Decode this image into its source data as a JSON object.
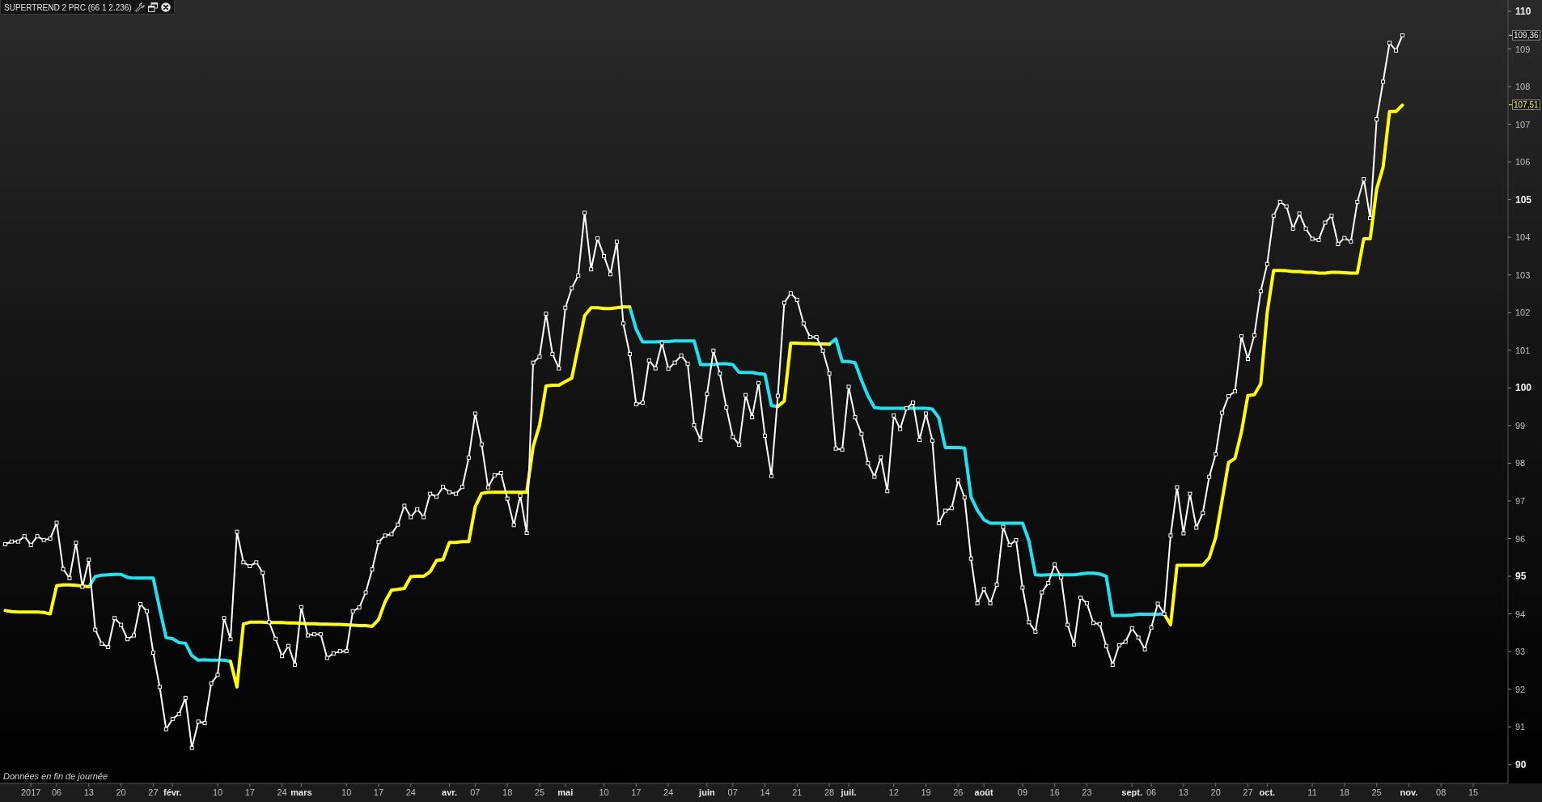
{
  "chart_data": {
    "type": "line",
    "title": "SUPERTREND 2 PRC (66 1 2.236)",
    "categories": [
      null,
      null,
      null,
      null,
      "2017",
      null,
      null,
      null,
      "06",
      null,
      null,
      null,
      null,
      "13",
      null,
      null,
      null,
      null,
      "20",
      null,
      null,
      null,
      null,
      "27",
      null,
      null,
      "févr.",
      null,
      null,
      null,
      null,
      null,
      null,
      "10",
      null,
      null,
      null,
      null,
      "17",
      null,
      null,
      null,
      null,
      "24",
      null,
      null,
      "mars",
      null,
      null,
      null,
      null,
      null,
      null,
      "10",
      null,
      null,
      null,
      null,
      "17",
      null,
      null,
      null,
      null,
      "24",
      null,
      null,
      null,
      null,
      null,
      "avr.",
      null,
      null,
      null,
      "07",
      null,
      null,
      null,
      null,
      "18",
      null,
      null,
      null,
      null,
      "25",
      null,
      null,
      null,
      "mai",
      null,
      null,
      null,
      null,
      null,
      "10",
      null,
      null,
      null,
      null,
      "17",
      null,
      null,
      null,
      null,
      "24",
      null,
      null,
      null,
      null,
      null,
      "juin",
      null,
      null,
      null,
      "07",
      null,
      null,
      null,
      null,
      "14",
      null,
      null,
      null,
      null,
      "21",
      null,
      null,
      null,
      null,
      "28",
      null,
      null,
      "juil.",
      null,
      null,
      null,
      null,
      null,
      null,
      "12",
      null,
      null,
      null,
      null,
      "19",
      null,
      null,
      null,
      null,
      "26",
      null,
      null,
      null,
      "août",
      null,
      null,
      null,
      null,
      null,
      "09",
      null,
      null,
      null,
      null,
      "16",
      null,
      null,
      null,
      null,
      "23",
      null,
      null,
      null,
      null,
      null,
      null,
      "sept.",
      null,
      null,
      "06",
      null,
      null,
      null,
      null,
      "13",
      null,
      null,
      null,
      null,
      "20",
      null,
      null,
      null,
      null,
      "27",
      null,
      null,
      "oct.",
      null,
      null,
      null,
      null,
      null,
      null,
      "11",
      null,
      null,
      null,
      null,
      "18",
      null,
      null,
      null,
      null,
      "25",
      null,
      null,
      null,
      null,
      "nov.",
      null,
      null,
      null,
      null,
      "08",
      null,
      null,
      null,
      null,
      "15",
      null,
      null,
      null,
      null,
      null
    ],
    "series": [
      {
        "color": "#ffffff",
        "marker": "square",
        "values": [
          95.85,
          95.92,
          95.92,
          96.06,
          95.83,
          96.06,
          95.96,
          96.0,
          96.42,
          95.19,
          94.95,
          95.89,
          94.72,
          95.44,
          93.58,
          93.21,
          93.12,
          93.89,
          93.71,
          93.33,
          93.43,
          94.26,
          94.07,
          92.97,
          92.06,
          90.94,
          91.21,
          91.34,
          91.77,
          90.44,
          91.14,
          91.1,
          92.15,
          92.38,
          93.89,
          93.33,
          96.18,
          95.37,
          95.27,
          95.37,
          95.09,
          93.78,
          93.34,
          92.88,
          93.15,
          92.65,
          94.18,
          93.43,
          93.46,
          93.46,
          92.83,
          92.95,
          93.01,
          93.01,
          94.07,
          94.17,
          94.57,
          95.18,
          95.91,
          96.08,
          96.12,
          96.37,
          96.87,
          96.57,
          96.78,
          96.57,
          97.19,
          97.11,
          97.37,
          97.23,
          97.19,
          97.37,
          98.15,
          99.32,
          98.5,
          97.36,
          97.68,
          97.74,
          97.06,
          96.36,
          97.14,
          96.15,
          100.67,
          100.83,
          101.97,
          100.9,
          100.52,
          102.13,
          102.65,
          102.98,
          104.65,
          103.15,
          103.97,
          103.5,
          103.02,
          103.88,
          101.71,
          100.9,
          99.57,
          99.61,
          100.73,
          100.52,
          101.19,
          100.51,
          100.67,
          100.86,
          100.64,
          99.01,
          98.62,
          99.84,
          100.99,
          100.38,
          99.48,
          98.7,
          98.49,
          99.81,
          99.22,
          100.13,
          98.73,
          97.66,
          99.79,
          102.26,
          102.51,
          102.34,
          101.71,
          101.35,
          101.35,
          100.99,
          100.38,
          98.39,
          98.36,
          100.03,
          99.22,
          98.78,
          98.0,
          97.64,
          98.16,
          97.26,
          99.27,
          98.91,
          99.46,
          99.61,
          98.62,
          99.32,
          98.6,
          96.41,
          96.74,
          96.81,
          97.55,
          97.09,
          95.47,
          94.28,
          94.66,
          94.28,
          94.78,
          96.31,
          95.83,
          95.96,
          94.7,
          93.78,
          93.53,
          94.57,
          94.82,
          95.31,
          94.97,
          93.71,
          93.19,
          94.43,
          94.28,
          93.76,
          93.73,
          93.15,
          92.65,
          93.17,
          93.26,
          93.62,
          93.37,
          93.06,
          93.64,
          94.27,
          94.0,
          96.08,
          97.36,
          96.14,
          97.19,
          96.29,
          96.68,
          97.64,
          98.24,
          99.34,
          99.78,
          99.91,
          101.37,
          100.77,
          101.4,
          102.57,
          103.29,
          104.57,
          104.94,
          104.82,
          104.23,
          104.63,
          104.23,
          103.96,
          103.93,
          104.39,
          104.57,
          103.82,
          103.98,
          103.89,
          104.94,
          105.54,
          104.51,
          107.13,
          108.13,
          109.16,
          108.96,
          109.36,
          null,
          null,
          null,
          null,
          null,
          null,
          null,
          null,
          null,
          null,
          null,
          null,
          null,
          null,
          null,
          null
        ]
      },
      {
        "color": "#ffff00",
        "marker": "none",
        "values": [
          94.09,
          94.06,
          94.05,
          94.05,
          94.05,
          94.05,
          94.04,
          94.0,
          94.75,
          94.77,
          94.77,
          94.76,
          94.74,
          94.72,
          null,
          null,
          null,
          null,
          null,
          null,
          null,
          null,
          null,
          null,
          null,
          null,
          null,
          null,
          null,
          null,
          null,
          null,
          null,
          null,
          null,
          92.74,
          92.06,
          93.73,
          93.78,
          93.78,
          93.78,
          93.77,
          93.77,
          93.77,
          93.76,
          93.76,
          93.75,
          93.74,
          93.74,
          93.73,
          93.73,
          93.72,
          93.72,
          93.71,
          93.7,
          93.69,
          93.69,
          93.67,
          93.85,
          94.32,
          94.63,
          94.65,
          94.68,
          94.99,
          95.0,
          95.0,
          95.12,
          95.42,
          95.44,
          95.9,
          95.9,
          95.92,
          95.92,
          96.84,
          97.2,
          97.23,
          97.23,
          97.23,
          97.23,
          97.23,
          97.23,
          97.23,
          98.44,
          99.01,
          100.05,
          100.07,
          100.07,
          100.17,
          100.26,
          101.09,
          101.92,
          102.13,
          102.13,
          102.11,
          102.11,
          102.13,
          102.15,
          102.15,
          null,
          null,
          null,
          null,
          null,
          null,
          null,
          null,
          null,
          null,
          null,
          null,
          null,
          null,
          null,
          null,
          null,
          null,
          null,
          null,
          null,
          null,
          99.51,
          99.65,
          101.19,
          101.19,
          101.18,
          101.18,
          101.17,
          101.17,
          101.16,
          null,
          null,
          null,
          null,
          null,
          null,
          null,
          null,
          null,
          null,
          null,
          null,
          null,
          null,
          null,
          null,
          null,
          null,
          null,
          null,
          null,
          null,
          null,
          null,
          null,
          null,
          null,
          null,
          null,
          null,
          null,
          null,
          null,
          null,
          null,
          null,
          null,
          null,
          null,
          null,
          null,
          null,
          null,
          null,
          null,
          null,
          null,
          null,
          null,
          null,
          null,
          94.0,
          93.71,
          95.29,
          95.29,
          95.29,
          95.29,
          95.29,
          95.49,
          96.03,
          97.02,
          98.02,
          98.13,
          98.83,
          99.8,
          99.82,
          100.11,
          102.0,
          103.12,
          103.12,
          103.11,
          103.09,
          103.09,
          103.07,
          103.07,
          103.05,
          103.05,
          103.07,
          103.07,
          103.06,
          103.05,
          103.05,
          103.96,
          103.96,
          105.28,
          105.86,
          107.34,
          107.34,
          107.51,
          null,
          null,
          null,
          null,
          null,
          null,
          null,
          null,
          null,
          null,
          null,
          null,
          null,
          null,
          null,
          null
        ]
      },
      {
        "color": "#1de4f2",
        "marker": "none",
        "values": [
          null,
          null,
          null,
          null,
          null,
          null,
          null,
          null,
          null,
          null,
          null,
          null,
          null,
          94.72,
          94.99,
          95.03,
          95.04,
          95.05,
          95.05,
          94.97,
          94.95,
          94.95,
          94.95,
          94.95,
          94.14,
          93.37,
          93.34,
          93.24,
          93.22,
          92.89,
          92.77,
          92.78,
          92.77,
          92.77,
          92.77,
          92.74,
          null,
          null,
          null,
          null,
          null,
          null,
          null,
          null,
          null,
          null,
          null,
          null,
          null,
          null,
          null,
          null,
          null,
          null,
          null,
          null,
          null,
          null,
          null,
          null,
          null,
          null,
          null,
          null,
          null,
          null,
          null,
          null,
          null,
          null,
          null,
          null,
          null,
          null,
          null,
          null,
          null,
          null,
          null,
          null,
          null,
          null,
          null,
          null,
          null,
          null,
          null,
          null,
          null,
          null,
          null,
          null,
          null,
          null,
          null,
          null,
          null,
          102.15,
          101.56,
          101.22,
          101.22,
          101.22,
          101.23,
          101.23,
          101.25,
          101.25,
          101.25,
          101.25,
          100.62,
          100.62,
          100.62,
          100.64,
          100.64,
          100.62,
          100.41,
          100.41,
          100.41,
          100.38,
          100.36,
          99.53,
          99.51,
          null,
          null,
          null,
          null,
          null,
          null,
          null,
          101.16,
          101.3,
          100.7,
          100.7,
          100.67,
          100.2,
          99.79,
          99.48,
          99.46,
          99.46,
          99.46,
          99.46,
          99.46,
          99.46,
          99.46,
          99.46,
          99.44,
          99.21,
          98.42,
          98.42,
          98.42,
          98.4,
          97.11,
          96.75,
          96.5,
          96.41,
          96.41,
          96.41,
          96.41,
          96.41,
          96.41,
          95.94,
          95.04,
          95.03,
          95.04,
          95.04,
          95.04,
          95.04,
          95.04,
          95.06,
          95.08,
          95.08,
          95.06,
          95.0,
          93.96,
          93.96,
          93.96,
          93.97,
          93.99,
          93.99,
          93.99,
          93.99,
          94.0,
          null,
          null,
          null,
          null,
          null,
          null,
          null,
          null,
          null,
          null,
          null,
          null,
          null,
          null,
          null,
          null,
          null,
          null,
          null,
          null,
          null,
          null,
          null,
          null,
          null,
          null,
          null,
          null,
          null,
          null,
          null,
          null,
          null,
          null,
          null,
          null,
          null,
          null,
          null,
          null,
          null,
          null,
          null,
          null,
          null,
          null,
          null,
          null,
          null,
          null,
          null,
          null,
          null
        ]
      }
    ],
    "ylim": [
      89.5,
      110.3
    ],
    "yticks": [
      90,
      91,
      92,
      93,
      94,
      95,
      96,
      97,
      98,
      99,
      100,
      101,
      102,
      103,
      104,
      105,
      106,
      107,
      108,
      109,
      110
    ],
    "annotations": [
      "Données en fin de journée",
      "109,36",
      "107,51"
    ]
  }
}
